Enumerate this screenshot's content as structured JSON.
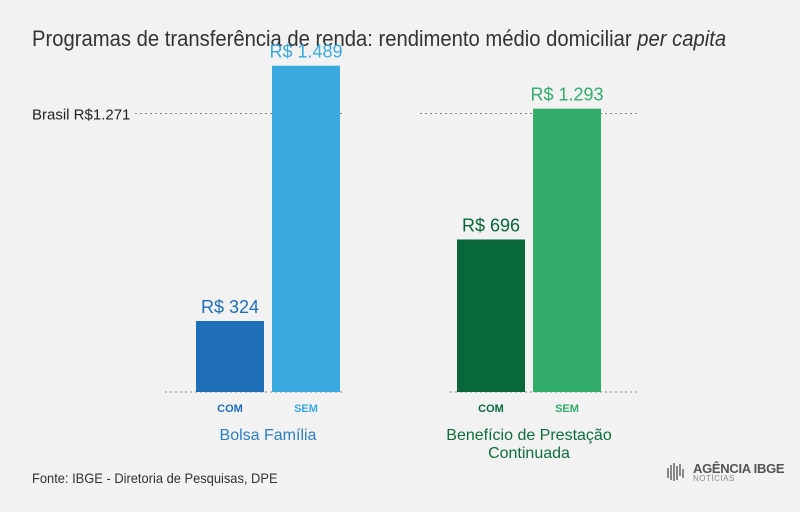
{
  "title": {
    "main": "Programas de transferência de renda: rendimento médio domiciliar ",
    "emphasis": "per capita"
  },
  "chart_data": {
    "type": "bar",
    "ylim": [
      0,
      1600
    ],
    "reference_line": {
      "label": "Brasil R$1.271",
      "value": 1271
    },
    "groups": [
      {
        "name": "Bolsa Família",
        "name_lines": [
          "Bolsa Família"
        ],
        "color": "#2b7fc1",
        "bars": [
          {
            "category": "COM",
            "value": 324,
            "label": "R$ 324",
            "color": "#1e6fb8"
          },
          {
            "category": "SEM",
            "value": 1489,
            "label": "R$ 1.489",
            "color": "#3aa9e0"
          }
        ]
      },
      {
        "name": "Benefício de Prestação Continuada",
        "name_lines": [
          "Benefício de Prestação",
          "Continuada"
        ],
        "color": "#0f6e3a",
        "bars": [
          {
            "category": "COM",
            "value": 696,
            "label": "R$ 696",
            "color": "#08683a"
          },
          {
            "category": "SEM",
            "value": 1293,
            "label": "R$ 1.293",
            "color": "#33ad6b"
          }
        ]
      }
    ]
  },
  "source": "Fonte: IBGE - Diretoria de Pesquisas, DPE",
  "logo": {
    "name": "AGÊNCIA IBGE",
    "sub": "NOTÍCIAS"
  }
}
